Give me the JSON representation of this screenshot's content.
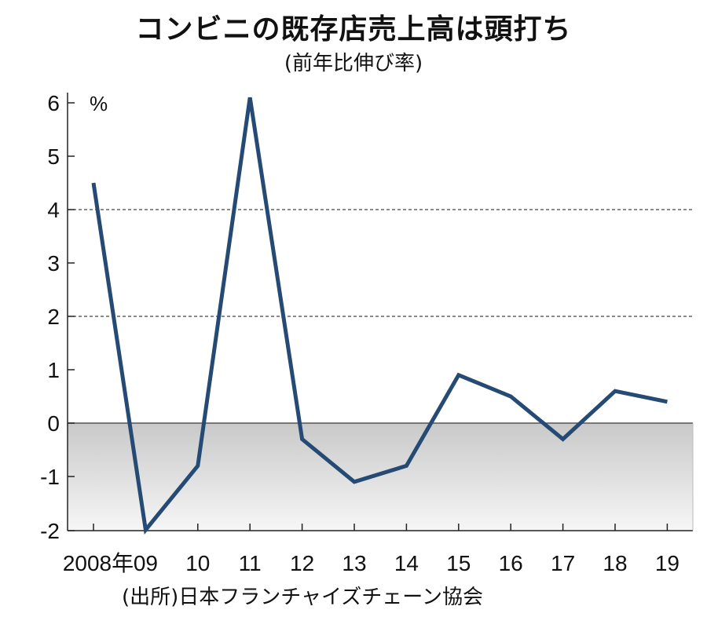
{
  "title": "コンビニの既存店売上高は頭打ち",
  "subtitle": "(前年比伸び率)",
  "source": "(出所)日本フランチャイズチェーン協会",
  "chart_data": {
    "type": "line",
    "title": "コンビニの既存店売上高は頭打ち",
    "subtitle": "(前年比伸び率)",
    "unit": "%",
    "categories": [
      "2008年",
      "09",
      "10",
      "11",
      "12",
      "13",
      "14",
      "15",
      "16",
      "17",
      "18",
      "19"
    ],
    "series": [
      {
        "values": [
          4.5,
          -2.0,
          -0.8,
          6.1,
          -0.3,
          -1.1,
          -0.8,
          0.9,
          0.5,
          -0.3,
          0.6,
          0.4
        ]
      }
    ],
    "ylim": [
      -2,
      6
    ],
    "yticks": [
      "6",
      "5",
      "4",
      "3",
      "2",
      "1",
      "0",
      "-1",
      "-2"
    ],
    "dashed_gridlines": [
      4,
      2
    ],
    "negative_region_shaded": true,
    "line_color": "#254a73",
    "source": "(出所)日本フランチャイズチェーン協会"
  }
}
